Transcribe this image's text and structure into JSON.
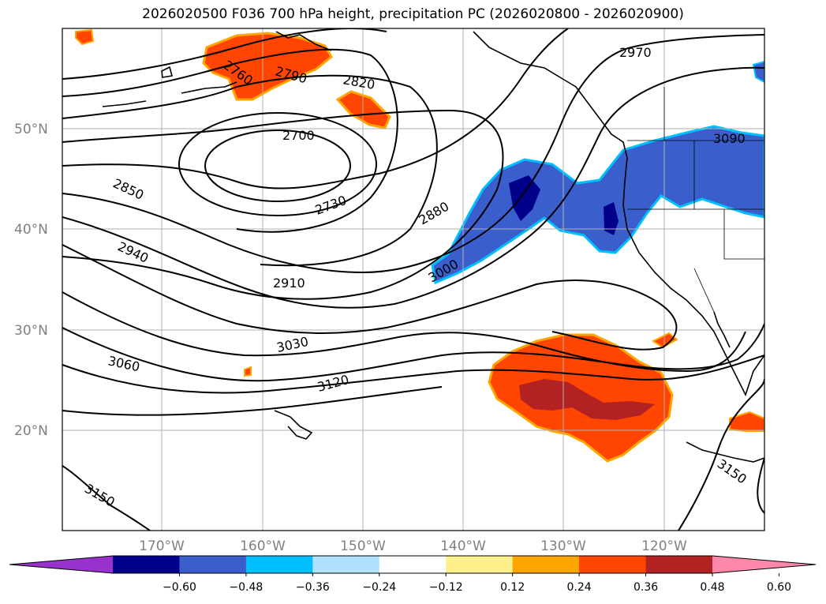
{
  "title": "2026020500 F036 700 hPa height, precipitation PC (2026020800 - 2026020900)",
  "contour_labels": [
    "2700",
    "2730",
    "2760",
    "2790",
    "2820",
    "2850",
    "2880",
    "2910",
    "2940",
    "2970",
    "3000",
    "3030",
    "3060",
    "3090",
    "3120",
    "3150",
    "3150"
  ],
  "lat_labels": [
    "50°N",
    "40°N",
    "30°N",
    "20°N"
  ],
  "lon_labels": [
    "170°W",
    "160°W",
    "150°W",
    "140°W",
    "130°W",
    "120°W"
  ],
  "colorbar": {
    "colors": [
      "#9932cc",
      "#00008b",
      "#3a5fcd",
      "#00bfff",
      "#b0e2ff",
      "#ffffff",
      "#fff08c",
      "#ffa500",
      "#ff4500",
      "#b22222",
      "#ff88aa"
    ],
    "ticks": [
      "−0.60",
      "−0.48",
      "−0.36",
      "−0.24",
      "−0.12",
      "0.12",
      "0.24",
      "0.36",
      "0.48",
      "0.60"
    ]
  },
  "colors": {
    "positive": "#ff4500",
    "positive_strong": "#b22222",
    "negative": "#3a5fcd",
    "negative_strong": "#00008b",
    "negative_edge": "#00bfff",
    "positive_edge": "#ffa500"
  }
}
